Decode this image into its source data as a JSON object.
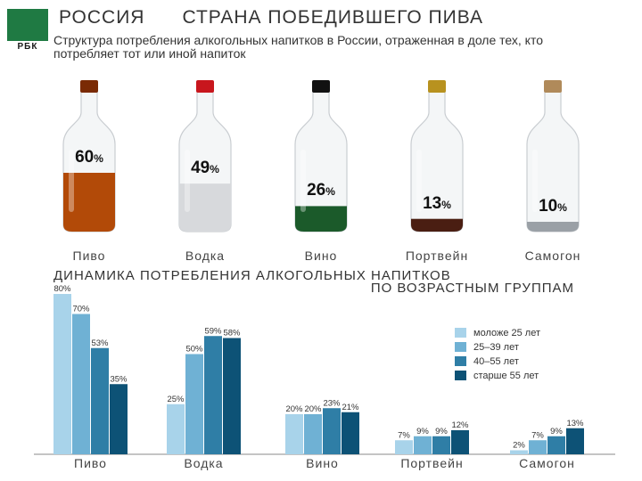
{
  "logo": {
    "text": "РБК"
  },
  "header": {
    "title_part1": "РОССИЯ",
    "title_part2": "СТРАНА ПОБЕДИВШЕГО ПИВА",
    "subtitle": "Структура потребления алкогольных напитков в России, отраженная в доле тех, кто потребляет тот или иной напиток"
  },
  "bottles": [
    {
      "label": "Пиво",
      "value": "60",
      "unit": "%",
      "level": 0.6,
      "color": "#b24a08",
      "neck": "#7a2a04"
    },
    {
      "label": "Водка",
      "value": "49",
      "unit": "%",
      "level": 0.49,
      "color": "#d7d9dc",
      "neck": "#c8161d"
    },
    {
      "label": "Вино",
      "value": "26",
      "unit": "%",
      "level": 0.26,
      "color": "#1b5a2a",
      "neck": "#111111"
    },
    {
      "label": "Портвейн",
      "value": "13",
      "unit": "%",
      "level": 0.13,
      "color": "#4a1e12",
      "neck": "#b8921f"
    },
    {
      "label": "Самогон",
      "value": "10",
      "unit": "%",
      "level": 0.1,
      "color": "#9aa0a6",
      "neck": "#b08a5a"
    }
  ],
  "section2": {
    "line1": "ДИНАМИКА ПОТРЕБЛЕНИЯ АЛКОГОЛЬНЫХ НАПИТКОВ",
    "line2": "ПО ВОЗРАСТНЫМ ГРУППАМ"
  },
  "chart_data": {
    "type": "bar",
    "categories": [
      "Пиво",
      "Водка",
      "Вино",
      "Портвейн",
      "Самогон"
    ],
    "series": [
      {
        "name": "моложе 25 лет",
        "color": "#a8d3ea",
        "values": [
          80,
          25,
          20,
          7,
          2
        ],
        "labels": [
          "80%",
          "25%",
          "20%",
          "7%",
          "2%"
        ]
      },
      {
        "name": "25–39 лет",
        "color": "#6fb1d4",
        "values": [
          70,
          50,
          20,
          9,
          7
        ],
        "labels": [
          "70%",
          "50%",
          "20%",
          "9%",
          "7%"
        ]
      },
      {
        "name": "40–55 лет",
        "color": "#2f7ea6",
        "values": [
          53,
          59,
          23,
          9,
          9
        ],
        "labels": [
          "53%",
          "59%",
          "23%",
          "9%",
          "9%"
        ]
      },
      {
        "name": "старше 55 лет",
        "color": "#0d5276",
        "values": [
          35,
          58,
          21,
          12,
          13
        ],
        "labels": [
          "35%",
          "58%",
          "21%",
          "12%",
          "13%"
        ]
      }
    ],
    "ylim": [
      0,
      80
    ],
    "grid": false,
    "legend": "right"
  }
}
